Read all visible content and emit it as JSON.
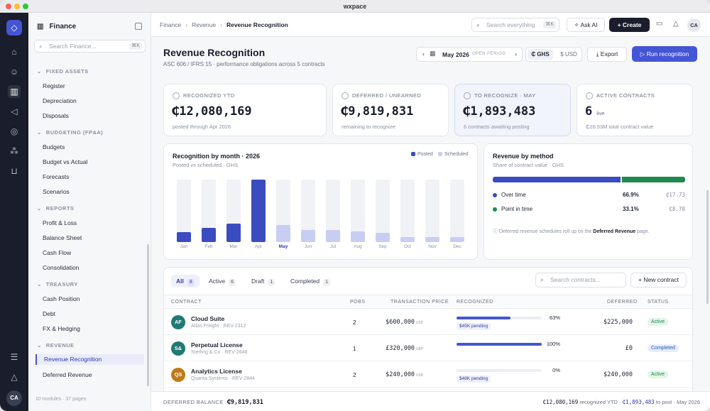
{
  "window": {
    "title": "wxpace"
  },
  "rail": {
    "icons": [
      "home-icon",
      "users-icon",
      "bank-icon",
      "megaphone-icon",
      "support-icon",
      "modules-icon",
      "cart-icon",
      "sliders-icon",
      "bell-icon"
    ],
    "avatar": "CA"
  },
  "sidebar": {
    "title": "Finance",
    "search_placeholder": "Search Finance...",
    "search_shortcut": "⌘K",
    "groups": [
      {
        "label": "FIXED ASSETS",
        "items": [
          "Register",
          "Depreciation",
          "Disposals"
        ]
      },
      {
        "label": "BUDGETING (FP&A)",
        "items": [
          "Budgets",
          "Budget vs Actual",
          "Forecasts",
          "Scenarios"
        ]
      },
      {
        "label": "REPORTS",
        "items": [
          "Profit & Loss",
          "Balance Sheet",
          "Cash Flow",
          "Consolidation"
        ]
      },
      {
        "label": "TREASURY",
        "items": [
          "Cash Position",
          "Debt",
          "FX & Hedging"
        ]
      },
      {
        "label": "REVENUE",
        "items": [
          "Revenue Recognition",
          "Deferred Revenue"
        ]
      }
    ],
    "footer": "10 modules · 37 pages"
  },
  "topbar": {
    "breadcrumb": [
      "Finance",
      "Revenue",
      "Revenue Recognition"
    ],
    "search_placeholder": "Search everything",
    "search_shortcut": "⌘K",
    "ask_ai": "Ask AI",
    "create": "Create",
    "avatar": "CA"
  },
  "page": {
    "title": "Revenue Recognition",
    "subtitle": "ASC 606 / IFRS 15 · performance obligations across 5 contracts",
    "period": "May 2026",
    "period_status": "OPEN PERIOD",
    "currencies": [
      "₵ GHS",
      "$ USD"
    ],
    "export": "Export",
    "run": "Run recognition"
  },
  "kpis": [
    {
      "label": "RECOGNIZED YTD",
      "value": "₵12,080,169",
      "sub": "posted through Apr 2026"
    },
    {
      "label": "DEFERRED / UNEARNED",
      "value": "₵9,819,831",
      "sub": "remaining to recognize"
    },
    {
      "label": "TO RECOGNIZE · MAY",
      "value": "₵1,893,483",
      "sub": "6 contracts awaiting posting"
    },
    {
      "label": "ACTIVE CONTRACTS",
      "value": "6",
      "badge": "live",
      "sub": "₵26.53M total contract value"
    }
  ],
  "chart_data": {
    "type": "bar",
    "title": "Recognition by month · 2026",
    "subtitle": "Posted vs scheduled · GHS",
    "legend": [
      "Posted",
      "Scheduled"
    ],
    "categories": [
      "Jan",
      "Feb",
      "Mar",
      "Apr",
      "May",
      "Jun",
      "Jul",
      "Aug",
      "Sep",
      "Oct",
      "Nov",
      "Dec"
    ],
    "highlight": "May",
    "series": [
      {
        "name": "Posted",
        "values": [
          0.16,
          0.23,
          0.29,
          1.0,
          0,
          0,
          0,
          0,
          0,
          0,
          0,
          0
        ]
      },
      {
        "name": "Scheduled",
        "values": [
          0,
          0,
          0,
          0,
          0.27,
          0.19,
          0.19,
          0.17,
          0.15,
          0.08,
          0.08,
          0.08
        ]
      }
    ],
    "ylim": [
      0,
      1
    ]
  },
  "method": {
    "title": "Revenue by method",
    "subtitle": "Share of contract value · GHS",
    "rows": [
      {
        "name": "Over time",
        "pct": "66.9%",
        "share": 66.9,
        "amount": "₵17.73",
        "color": "#3b4cc0"
      },
      {
        "name": "Point in time",
        "pct": "33.1%",
        "share": 33.1,
        "amount": "₵8.78",
        "color": "#1f8a4c"
      }
    ],
    "note_pre": "Deferred revenue schedules roll up on the",
    "note_link": "Deferred Revenue",
    "note_post": "page."
  },
  "contracts": {
    "tabs": [
      {
        "label": "All",
        "count": "8"
      },
      {
        "label": "Active",
        "count": "6"
      },
      {
        "label": "Draft",
        "count": "1"
      },
      {
        "label": "Completed",
        "count": "1"
      }
    ],
    "search_placeholder": "Search contracts...",
    "new_button": "New contract",
    "columns": [
      "CONTRACT",
      "POBS",
      "TRANSACTION PRICE",
      "RECOGNIZED",
      "DEFERRED",
      "STATUS"
    ],
    "rows": [
      {
        "initials": "AF",
        "color": "#1f7a74",
        "name": "Cloud Suite",
        "sub": "Atlas Freight · REV-2312",
        "pobs": "2",
        "price": "$600,000",
        "ccy": "USD",
        "pct": "63%",
        "progress": 0.63,
        "pending": "$45K pending",
        "deferred": "$225,000",
        "status": "Active"
      },
      {
        "initials": "S&",
        "color": "#1f7a74",
        "name": "Perpetual License",
        "sub": "Sterling & Co · REV-2648",
        "pobs": "1",
        "price": "£320,000",
        "ccy": "GBP",
        "pct": "100%",
        "progress": 1.0,
        "pending": "",
        "deferred": "£0",
        "status": "Completed"
      },
      {
        "initials": "QS",
        "color": "#c07a1a",
        "name": "Analytics License",
        "sub": "Quanta Systems · REV-2844",
        "pobs": "2",
        "price": "$240,000",
        "ccy": "USD",
        "pct": "0%",
        "progress": 0.0,
        "pending": "$48K pending",
        "deferred": "$240,000",
        "status": "Active"
      }
    ]
  },
  "bottom": {
    "label": "DEFERRED BALANCE",
    "value": "₵9,819,831",
    "ytd_value": "₵12,080,169",
    "ytd_label": "recognized YTD",
    "post_value": "₵1,893,483",
    "post_label": "to post · May 2026"
  }
}
